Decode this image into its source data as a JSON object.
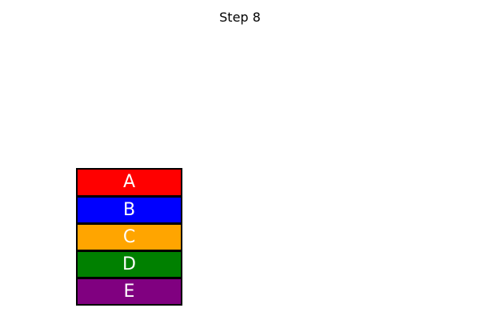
{
  "title": "Step 8",
  "stack": {
    "blocks": [
      {
        "label": "A",
        "color": "#ff0000"
      },
      {
        "label": "B",
        "color": "#0000ff"
      },
      {
        "label": "C",
        "color": "#ffa500"
      },
      {
        "label": "D",
        "color": "#008000"
      },
      {
        "label": "E",
        "color": "#800080"
      }
    ]
  }
}
